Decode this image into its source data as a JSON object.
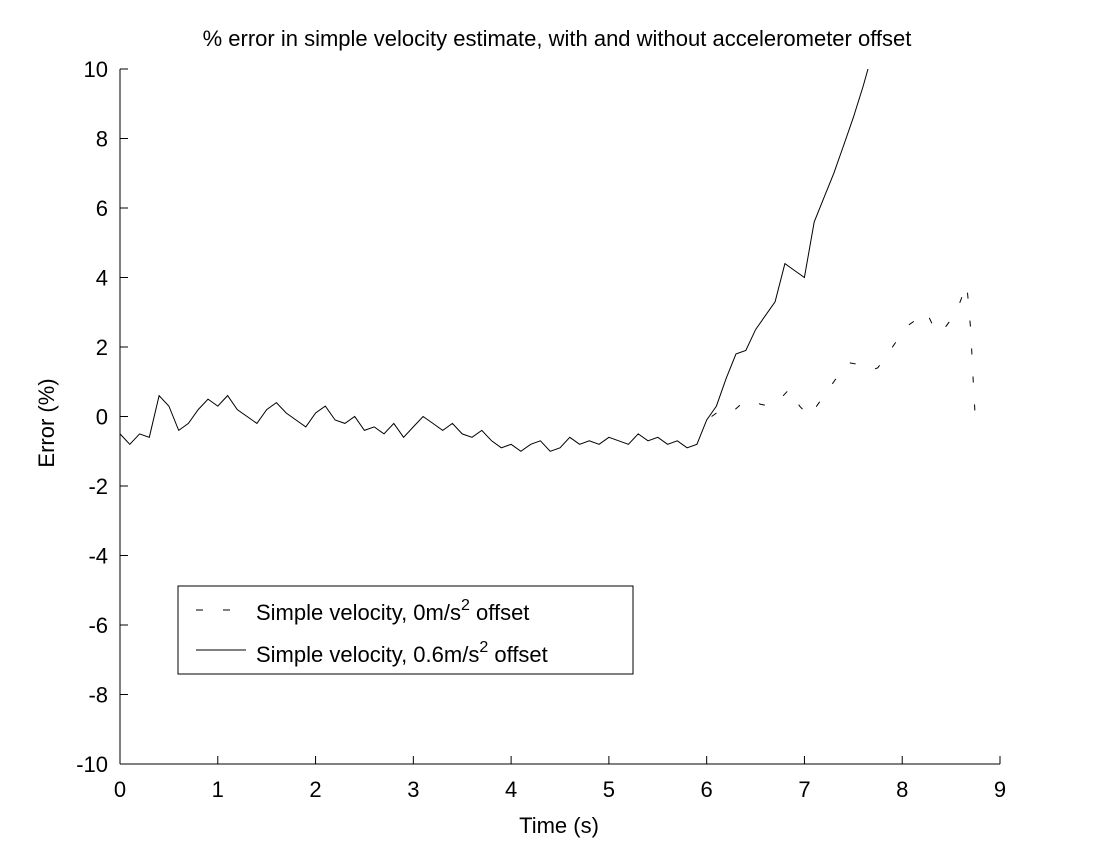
{
  "chart_data": {
    "type": "line",
    "title": "% error in simple velocity estimate, with and without accelerometer offset",
    "xlabel": "Time (s)",
    "ylabel": "Error (%)",
    "xlim": [
      0,
      9
    ],
    "ylim": [
      -10,
      10
    ],
    "xticks": [
      "0",
      "1",
      "2",
      "3",
      "4",
      "5",
      "6",
      "7",
      "8",
      "9"
    ],
    "yticks": [
      "10",
      "8",
      "6",
      "4",
      "2",
      "0",
      "-2",
      "-4",
      "-6",
      "-8",
      "-10"
    ],
    "grid": false,
    "legend_position": "lower-left",
    "legend": [
      {
        "label": "Simple velocity, 0m/s",
        "superscript": "2",
        "suffix": " offset",
        "style": "dashed"
      },
      {
        "label": "Simple velocity, 0.6m/s",
        "superscript": "2",
        "suffix": " offset",
        "style": "solid"
      }
    ],
    "series": [
      {
        "style": "dashed",
        "x": [
          6.05,
          6.15,
          6.25,
          6.35,
          6.45,
          6.55,
          6.65,
          6.75,
          6.85,
          6.95,
          7.05,
          7.15,
          7.25,
          7.35,
          7.45,
          7.55,
          7.65,
          7.75,
          7.85,
          7.95,
          8.05,
          8.15,
          8.25,
          8.35,
          8.45,
          8.55,
          8.62,
          8.66,
          8.7,
          8.73,
          8.75
        ],
        "y": [
          0.0,
          0.2,
          0.1,
          0.35,
          0.5,
          0.35,
          0.3,
          0.5,
          0.8,
          0.3,
          0.0,
          0.4,
          0.8,
          1.2,
          1.55,
          1.5,
          1.3,
          1.4,
          1.8,
          2.2,
          2.6,
          2.8,
          3.0,
          2.4,
          2.6,
          3.0,
          3.5,
          3.8,
          2.5,
          0.8,
          -0.2
        ]
      },
      {
        "style": "solid",
        "x": [
          0.0,
          0.1,
          0.2,
          0.3,
          0.4,
          0.5,
          0.6,
          0.7,
          0.8,
          0.9,
          1.0,
          1.1,
          1.2,
          1.3,
          1.4,
          1.5,
          1.6,
          1.7,
          1.8,
          1.9,
          2.0,
          2.1,
          2.2,
          2.3,
          2.4,
          2.5,
          2.6,
          2.7,
          2.8,
          2.9,
          3.0,
          3.1,
          3.2,
          3.3,
          3.4,
          3.5,
          3.6,
          3.7,
          3.8,
          3.9,
          4.0,
          4.1,
          4.2,
          4.3,
          4.4,
          4.5,
          4.6,
          4.7,
          4.8,
          4.9,
          5.0,
          5.1,
          5.2,
          5.3,
          5.4,
          5.5,
          5.6,
          5.7,
          5.8,
          5.9,
          6.0,
          6.1,
          6.2,
          6.3,
          6.4,
          6.5,
          6.6,
          6.7,
          6.8,
          6.9,
          7.0,
          7.1,
          7.2,
          7.3,
          7.4,
          7.5,
          7.6,
          7.65
        ],
        "y": [
          -0.5,
          -0.8,
          -0.5,
          -0.6,
          0.6,
          0.3,
          -0.4,
          -0.2,
          0.2,
          0.5,
          0.3,
          0.6,
          0.2,
          0.0,
          -0.2,
          0.2,
          0.4,
          0.1,
          -0.1,
          -0.3,
          0.1,
          0.3,
          -0.1,
          -0.2,
          0.0,
          -0.4,
          -0.3,
          -0.5,
          -0.2,
          -0.6,
          -0.3,
          0.0,
          -0.2,
          -0.4,
          -0.2,
          -0.5,
          -0.6,
          -0.4,
          -0.7,
          -0.9,
          -0.8,
          -1.0,
          -0.8,
          -0.7,
          -1.0,
          -0.9,
          -0.6,
          -0.8,
          -0.7,
          -0.8,
          -0.6,
          -0.7,
          -0.8,
          -0.5,
          -0.7,
          -0.6,
          -0.8,
          -0.7,
          -0.9,
          -0.8,
          -0.1,
          0.3,
          1.1,
          1.8,
          1.9,
          2.5,
          2.9,
          3.3,
          4.4,
          4.2,
          4.0,
          5.6,
          6.3,
          7.0,
          7.8,
          8.6,
          9.5,
          10.0
        ]
      }
    ]
  }
}
